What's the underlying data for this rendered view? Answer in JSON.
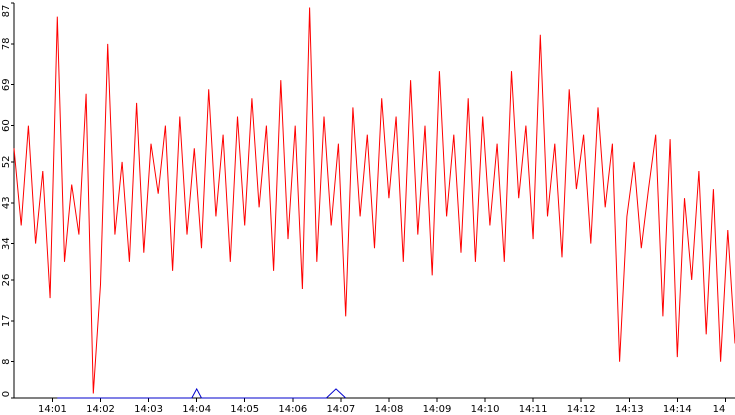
{
  "chart_data": {
    "type": "line",
    "title": "",
    "xlabel": "",
    "ylabel": "",
    "grid": false,
    "legend": "none",
    "ylim": [
      0,
      87
    ],
    "y_ticks": [
      "0",
      "8",
      "17",
      "26",
      "34",
      "43",
      "52",
      "60",
      "69",
      "78",
      "87"
    ],
    "x_ticks": [
      "14:01",
      "14:02",
      "14:03",
      "14:04",
      "14:05",
      "14:06",
      "14:07",
      "14:08",
      "14:09",
      "14:10",
      "14:11",
      "14:12",
      "14:13",
      "14:14",
      "14"
    ],
    "x_tick_minutes": [
      1,
      2,
      3,
      4,
      5,
      6,
      7,
      8,
      9,
      10,
      11,
      12,
      13,
      14,
      15
    ],
    "xlim_minutes": [
      0.2,
      15.2
    ],
    "series": [
      {
        "color": "#ff0000",
        "x_minutes": [
          0.2,
          0.35,
          0.5,
          0.65,
          0.8,
          0.95,
          1.1,
          1.25,
          1.4,
          1.55,
          1.7,
          1.85,
          2.0,
          2.15,
          2.3,
          2.45,
          2.6,
          2.75,
          2.9,
          3.05,
          3.2,
          3.35,
          3.5,
          3.65,
          3.8,
          3.95,
          4.1,
          4.25,
          4.4,
          4.55,
          4.7,
          4.85,
          5.0,
          5.15,
          5.3,
          5.45,
          5.6,
          5.75,
          5.9,
          6.05,
          6.2,
          6.35,
          6.5,
          6.65,
          6.8,
          6.95,
          7.1,
          7.25,
          7.4,
          7.55,
          7.7,
          7.85,
          8.0,
          8.15,
          8.3,
          8.45,
          8.6,
          8.75,
          8.9,
          9.05,
          9.2,
          9.35,
          9.5,
          9.65,
          9.8,
          9.95,
          10.1,
          10.25,
          10.4,
          10.55,
          10.7,
          10.85,
          11.0,
          11.15,
          11.3,
          11.45,
          11.6,
          11.75,
          11.9,
          12.05,
          12.2,
          12.35,
          12.5,
          12.65,
          12.8,
          12.95,
          13.1,
          13.25,
          13.4,
          13.55,
          13.7,
          13.85,
          14.0,
          14.15,
          14.3,
          14.45,
          14.6,
          14.75,
          14.9,
          15.05,
          15.2
        ],
        "values": [
          55,
          38,
          60,
          34,
          50,
          22,
          84,
          30,
          47,
          36,
          67,
          1,
          25,
          78,
          36,
          52,
          30,
          65,
          32,
          56,
          45,
          60,
          28,
          62,
          36,
          55,
          33,
          68,
          40,
          58,
          30,
          62,
          38,
          66,
          42,
          60,
          28,
          70,
          35,
          60,
          24,
          86,
          30,
          62,
          38,
          56,
          18,
          64,
          40,
          58,
          33,
          66,
          44,
          62,
          30,
          70,
          36,
          60,
          27,
          72,
          40,
          58,
          32,
          66,
          30,
          62,
          38,
          56,
          30,
          72,
          44,
          60,
          35,
          80,
          40,
          56,
          31,
          68,
          46,
          58,
          34,
          64,
          42,
          56,
          8,
          40,
          52,
          33,
          46,
          58,
          18,
          57,
          9,
          44,
          26,
          50,
          14,
          46,
          8,
          37,
          12
        ]
      },
      {
        "color": "#0000cc",
        "x_minutes": [
          1.1,
          2.3,
          3.7,
          3.9,
          4.0,
          4.1,
          6.5,
          6.7,
          6.9,
          7.1
        ],
        "values": [
          0,
          0,
          0,
          0,
          2,
          0,
          0,
          0,
          2,
          0
        ]
      }
    ]
  }
}
